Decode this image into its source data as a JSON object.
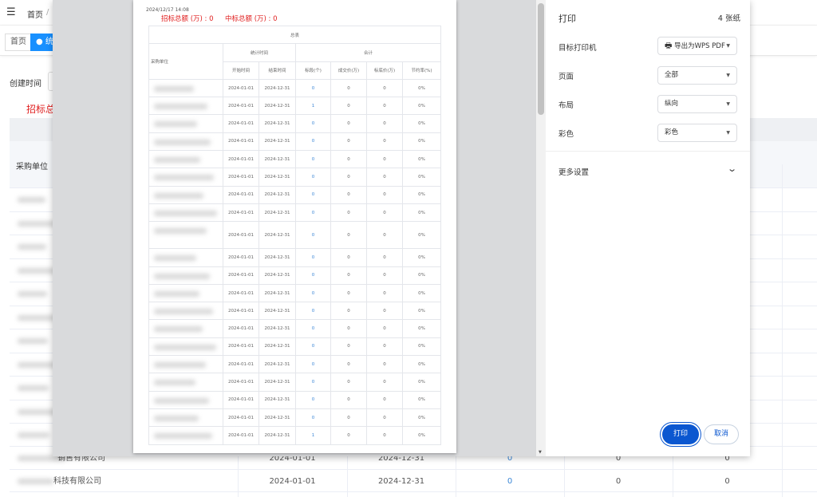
{
  "app": {
    "breadcrumb": "首页",
    "breadcrumb_sep": "/",
    "tags": [
      "首页",
      "● 统计"
    ],
    "filter_label": "创建时间",
    "summary_partial": "招标总",
    "table_header_first": "采购单位",
    "bottom_rows": [
      {
        "name": "销售有限公司",
        "start": "2024-01-01",
        "end": "2024-12-31",
        "count": "0",
        "deal": "0",
        "ctrl": "0"
      },
      {
        "name": "科技有限公司",
        "start": "2024-01-01",
        "end": "2024-12-31",
        "count": "0",
        "deal": "0",
        "ctrl": "0"
      }
    ]
  },
  "preview": {
    "timestamp": "2024/12/17 14:08",
    "bid_total": "招标总额 (万) : 0",
    "win_total": "中标总额 (万) : 0",
    "table": {
      "title": "总表",
      "col_unit": "采购单位",
      "group_time": "统计时间",
      "group_total": "合计",
      "headers": [
        "开始时间",
        "结束时间",
        "标段(个)",
        "成交价(万)",
        "标底价(万)",
        "节约率(%)"
      ],
      "rows": [
        [
          "2024-01-01",
          "2024-12-31",
          "0",
          "0",
          "0",
          "0%"
        ],
        [
          "2024-01-01",
          "2024-12-31",
          "1",
          "0",
          "0",
          "0%"
        ],
        [
          "2024-01-01",
          "2024-12-31",
          "0",
          "0",
          "0",
          "0%"
        ],
        [
          "2024-01-01",
          "2024-12-31",
          "0",
          "0",
          "0",
          "0%"
        ],
        [
          "2024-01-01",
          "2024-12-31",
          "0",
          "0",
          "0",
          "0%"
        ],
        [
          "2024-01-01",
          "2024-12-31",
          "0",
          "0",
          "0",
          "0%"
        ],
        [
          "2024-01-01",
          "2024-12-31",
          "0",
          "0",
          "0",
          "0%"
        ],
        [
          "2024-01-01",
          "2024-12-31",
          "0",
          "0",
          "0",
          "0%"
        ],
        [
          "2024-01-01",
          "2024-12-31",
          "0",
          "0",
          "0",
          "0%"
        ],
        [
          "2024-01-01",
          "2024-12-31",
          "0",
          "0",
          "0",
          "0%"
        ],
        [
          "2024-01-01",
          "2024-12-31",
          "0",
          "0",
          "0",
          "0%"
        ],
        [
          "2024-01-01",
          "2024-12-31",
          "0",
          "0",
          "0",
          "0%"
        ],
        [
          "2024-01-01",
          "2024-12-31",
          "0",
          "0",
          "0",
          "0%"
        ],
        [
          "2024-01-01",
          "2024-12-31",
          "0",
          "0",
          "0",
          "0%"
        ],
        [
          "2024-01-01",
          "2024-12-31",
          "0",
          "0",
          "0",
          "0%"
        ],
        [
          "2024-01-01",
          "2024-12-31",
          "0",
          "0",
          "0",
          "0%"
        ],
        [
          "2024-01-01",
          "2024-12-31",
          "0",
          "0",
          "0",
          "0%"
        ],
        [
          "2024-01-01",
          "2024-12-31",
          "0",
          "0",
          "0",
          "0%"
        ],
        [
          "2024-01-01",
          "2024-12-31",
          "0",
          "0",
          "0",
          "0%"
        ],
        [
          "2024-01-01",
          "2024-12-31",
          "1",
          "0",
          "0",
          "0%"
        ]
      ]
    }
  },
  "print": {
    "title": "打印",
    "sheets": "4 张纸",
    "printer_label": "目标打印机",
    "printer_value": "导出为WPS PDF",
    "pages_label": "页面",
    "pages_value": "全部",
    "layout_label": "布局",
    "layout_value": "纵向",
    "color_label": "彩色",
    "color_value": "彩色",
    "more_settings": "更多设置",
    "print_button": "打印",
    "cancel_button": "取消",
    "accent": "#0b57d0"
  }
}
